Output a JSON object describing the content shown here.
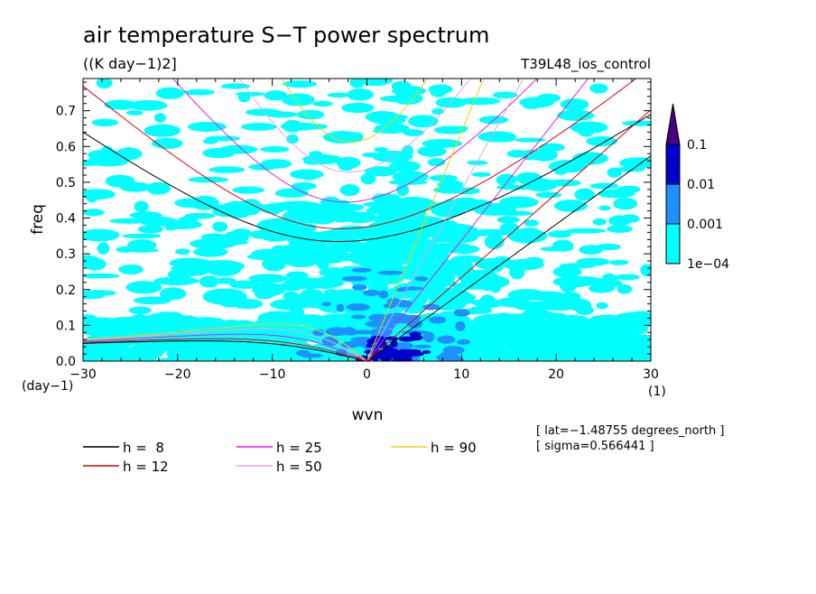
{
  "chart_data": {
    "type": "heatmap",
    "title": "air temperature S−T power spectrum",
    "units": "((K day−1)2]",
    "run_name": "T39L48_ios_control",
    "xlabel": "wvn",
    "ylabel": "freq",
    "x_unit": "(1)",
    "y_unit": "(day−1)",
    "xlim": [
      -30,
      30
    ],
    "ylim": [
      0,
      0.79
    ],
    "xticks": [
      -30,
      -20,
      -10,
      0,
      10,
      20,
      30
    ],
    "xtick_labels": [
      "−30",
      "−20",
      "−10",
      "0",
      "10",
      "20",
      "30"
    ],
    "yticks": [
      0.0,
      0.1,
      0.2,
      0.3,
      0.4,
      0.5,
      0.6,
      0.7
    ],
    "ytick_labels": [
      "0.0",
      "0.1",
      "0.2",
      "0.3",
      "0.4",
      "0.5",
      "0.6",
      "0.7"
    ],
    "colorbar": {
      "levels": [
        0.0001,
        0.001,
        0.01,
        0.1
      ],
      "labels": [
        "1e−04",
        "0.001",
        "0.01",
        "0.1"
      ],
      "colors": [
        "#00ffff",
        "#1e90ff",
        "#0000cd",
        "#4b0082"
      ]
    },
    "dispersion_curves": [
      {
        "name": "h =  8",
        "equivalent_depth": 8,
        "color": "#000000"
      },
      {
        "name": "h = 12",
        "equivalent_depth": 12,
        "color": "#e00000"
      },
      {
        "name": "h = 25",
        "equivalent_depth": 25,
        "color": "#e020e0"
      },
      {
        "name": "h = 50",
        "equivalent_depth": 50,
        "color": "#e8a0e8"
      },
      {
        "name": "h = 90",
        "equivalent_depth": 90,
        "color": "#f0d000"
      }
    ],
    "annotations": [
      "[ lat=−1.48755 degrees_north ]",
      "[ sigma=0.566441 ]"
    ]
  }
}
